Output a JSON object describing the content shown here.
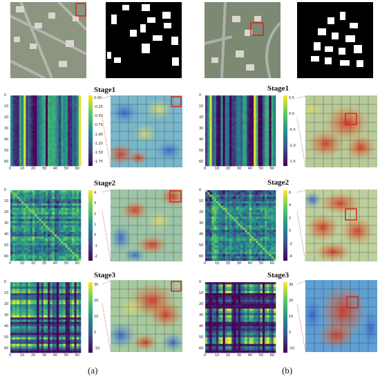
{
  "figure": {
    "panel_labels": [
      "(a)",
      "(b)"
    ],
    "stage_titles": [
      "Stage1",
      "Stage2",
      "Stage3"
    ]
  },
  "colorbars": {
    "a": [
      {
        "ticks": [
          "0.00",
          "-0.25",
          "-0.50",
          "-0.75",
          "-1.00",
          "-1.25",
          "-1.50",
          "-1.75"
        ]
      },
      {
        "ticks": [
          "4",
          "3",
          "2",
          "1",
          "0",
          "-1",
          "-2"
        ]
      },
      {
        "ticks": [
          "30",
          "20",
          "10",
          "0",
          "-10"
        ]
      }
    ],
    "b": [
      {
        "ticks": [
          "0.5",
          "0.0",
          "-0.5",
          "-1.0",
          "-1.5"
        ]
      },
      {
        "ticks": [
          "6",
          "4",
          "2",
          "0",
          "-2",
          "-4"
        ]
      },
      {
        "ticks": [
          "30",
          "20",
          "10",
          "0",
          "-10"
        ]
      }
    ]
  },
  "matrix_axis": {
    "ticks": [
      "0",
      "10",
      "20",
      "30",
      "40",
      "50",
      "60"
    ]
  },
  "colors": {
    "viridis_low": "#440154",
    "viridis_mid": "#21918c",
    "viridis_high": "#fde725",
    "highlight_box": "#e0201a",
    "connector": "#d04030"
  }
}
